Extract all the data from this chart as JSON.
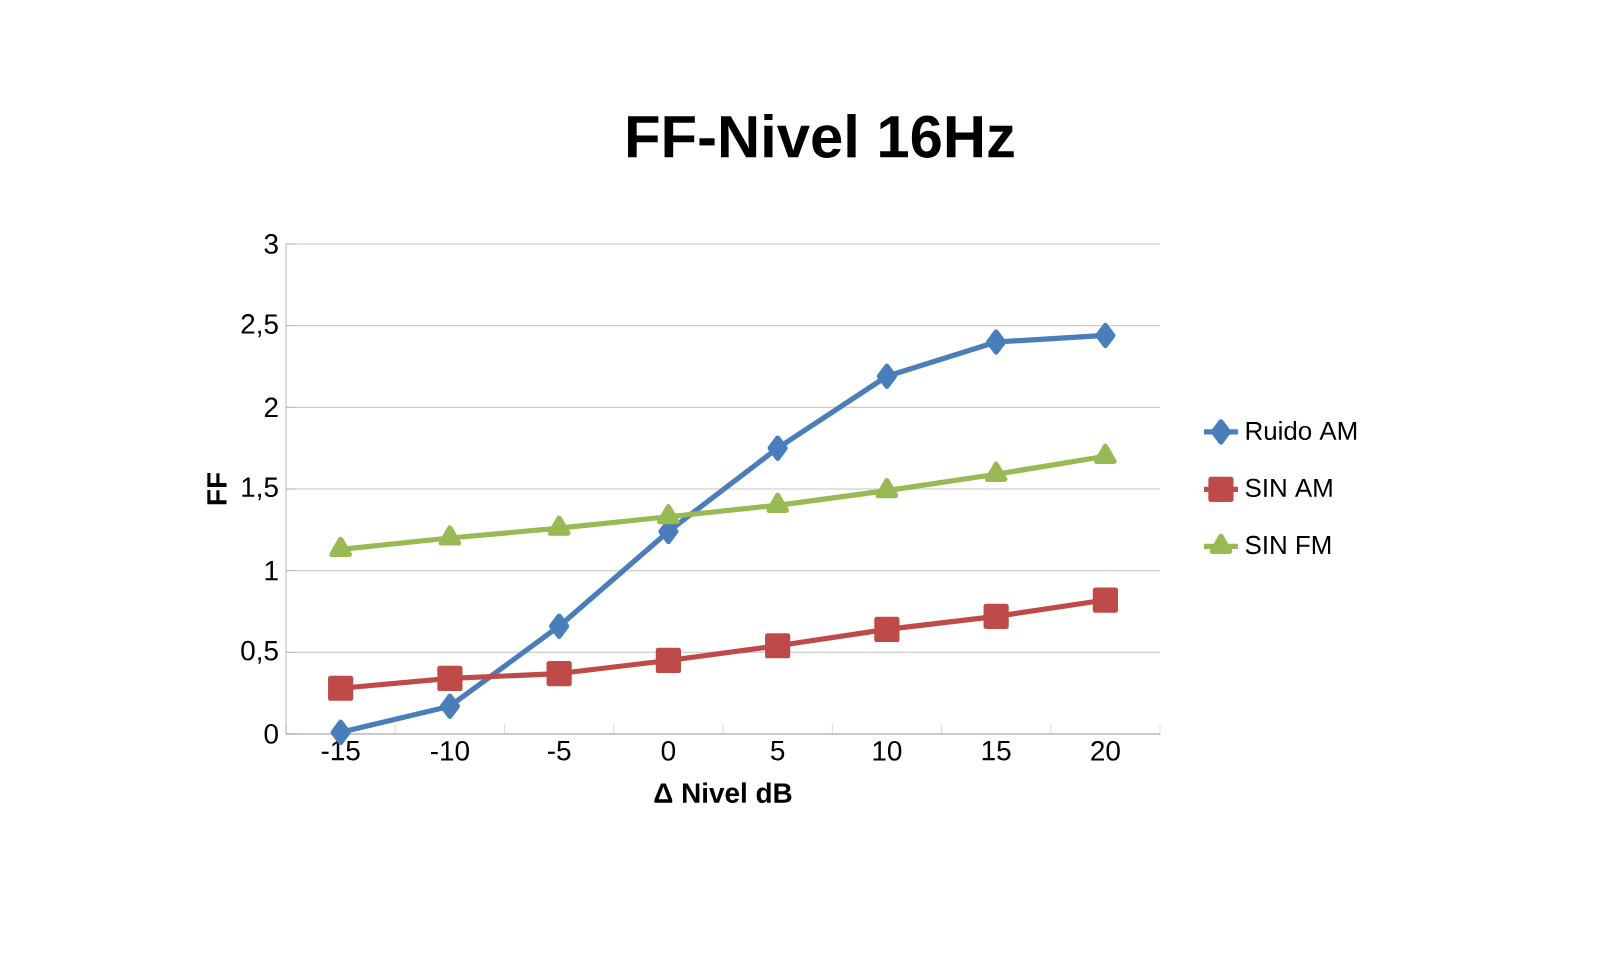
{
  "chart_data": {
    "type": "line",
    "title": "FF-Nivel 16Hz",
    "xlabel": "Δ Nivel dB",
    "ylabel": "FF",
    "categories": [
      "-15",
      "-10",
      "-5",
      "0",
      "5",
      "10",
      "15",
      "20"
    ],
    "series": [
      {
        "name": "Ruido AM",
        "color": "#4a7ebb",
        "marker": "diamond",
        "values": [
          0.01,
          0.17,
          0.66,
          1.24,
          1.75,
          2.19,
          2.4,
          2.44
        ]
      },
      {
        "name": "SIN AM",
        "color": "#be4b48",
        "marker": "square",
        "values": [
          0.28,
          0.34,
          0.37,
          0.45,
          0.54,
          0.64,
          0.72,
          0.82
        ]
      },
      {
        "name": "SIN FM",
        "color": "#98b954",
        "marker": "triangle",
        "values": [
          1.13,
          1.2,
          1.26,
          1.33,
          1.4,
          1.49,
          1.59,
          1.7
        ]
      }
    ],
    "ylim": [
      0,
      3
    ],
    "yticks": [
      0,
      {
        "value": 0.5,
        "label": "0,5"
      },
      1,
      {
        "value": 1.5,
        "label": "1,5"
      },
      2,
      {
        "value": 2.5,
        "label": "2,5"
      },
      3
    ],
    "grid": "y",
    "legend": "right"
  }
}
